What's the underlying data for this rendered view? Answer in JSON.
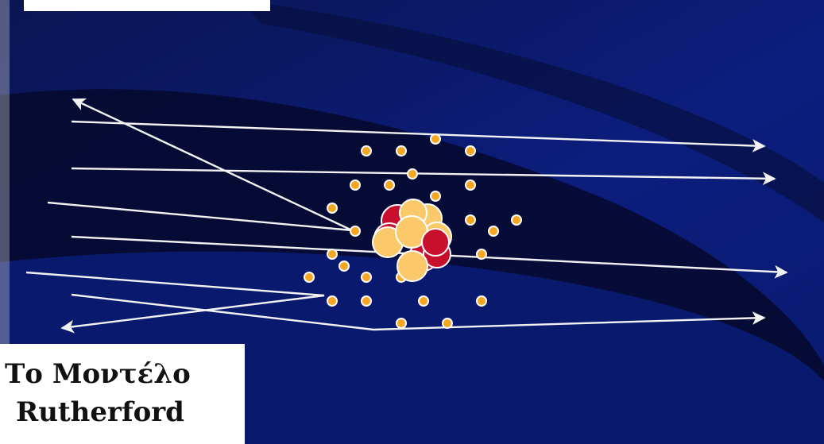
{
  "title": {
    "line1": "Το Μοντέλο",
    "line2": "Rutherford"
  },
  "colors": {
    "background_dark": "#050a30",
    "background_blue": "#0c1b7a",
    "trajectory": "#f2f2f2",
    "electron_fill": "#f5a623",
    "electron_stroke": "#ffffff",
    "proton": "#c8102e",
    "neutron": "#fbc96a"
  },
  "icons": {
    "nucleus": "atomic-nucleus-icon",
    "electron": "electron-dot-icon",
    "trajectory": "alpha-particle-path-arrow"
  }
}
